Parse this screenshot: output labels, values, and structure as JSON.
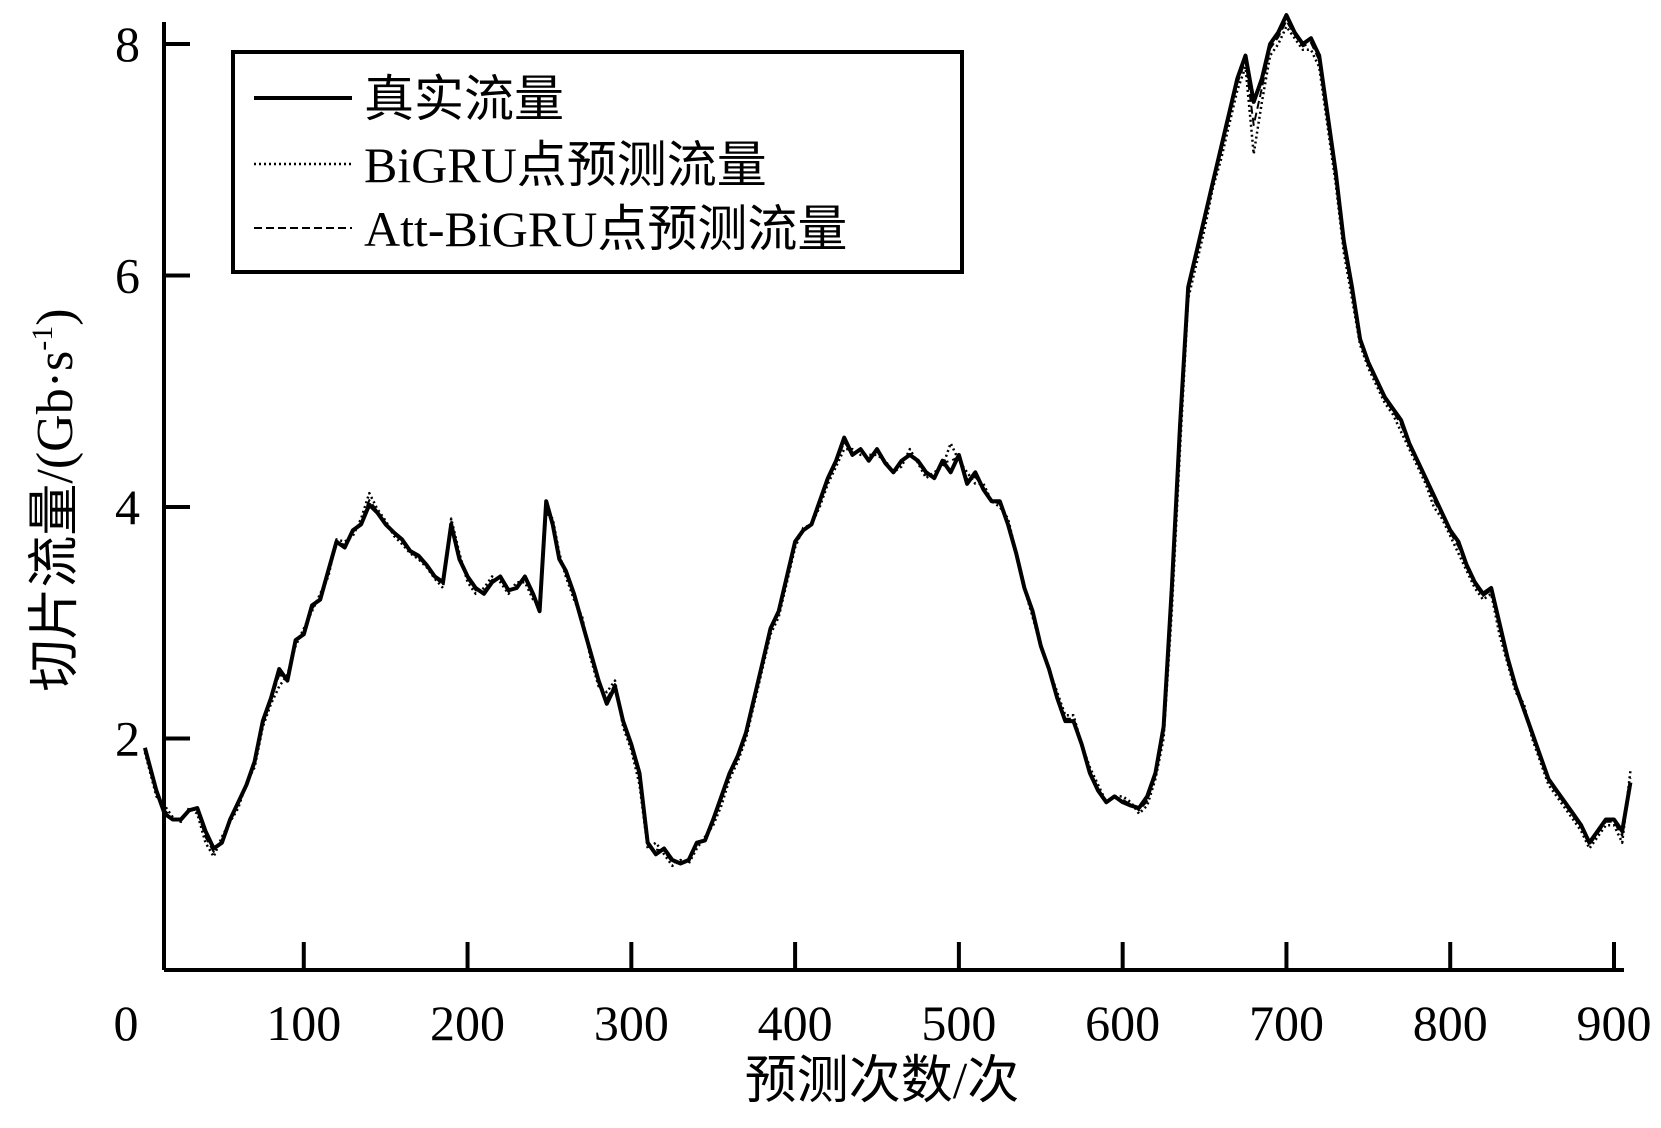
{
  "chart_data": {
    "type": "line",
    "title": "",
    "xlabel": "预测次数/次",
    "ylabel": "切片流量/(Gb·s",
    "ylabel_sup": "-1",
    "ylabel_close": ")",
    "xlim": [
      0,
      910
    ],
    "ylim": [
      0,
      8
    ],
    "x_ticks": [
      0,
      100,
      200,
      300,
      400,
      500,
      600,
      700,
      800,
      900
    ],
    "y_ticks": [
      2,
      4,
      6,
      8
    ],
    "grid": false,
    "legend_position": "top-left",
    "x": [
      3,
      10,
      15,
      20,
      25,
      30,
      35,
      40,
      45,
      50,
      55,
      60,
      65,
      70,
      75,
      80,
      85,
      90,
      95,
      100,
      105,
      110,
      115,
      120,
      125,
      130,
      135,
      140,
      145,
      150,
      155,
      160,
      165,
      170,
      175,
      180,
      185,
      190,
      195,
      200,
      205,
      210,
      215,
      220,
      225,
      230,
      235,
      240,
      244,
      248,
      252,
      256,
      260,
      265,
      270,
      275,
      280,
      285,
      290,
      295,
      300,
      305,
      310,
      315,
      320,
      325,
      330,
      335,
      340,
      345,
      350,
      355,
      360,
      365,
      370,
      375,
      380,
      385,
      390,
      395,
      400,
      405,
      410,
      415,
      420,
      425,
      430,
      435,
      440,
      445,
      450,
      455,
      460,
      465,
      470,
      475,
      480,
      485,
      490,
      495,
      500,
      505,
      510,
      515,
      520,
      525,
      530,
      535,
      540,
      545,
      550,
      555,
      560,
      565,
      570,
      575,
      580,
      585,
      590,
      595,
      600,
      605,
      610,
      615,
      620,
      625,
      630,
      635,
      640,
      645,
      650,
      655,
      660,
      665,
      670,
      675,
      680,
      685,
      690,
      695,
      700,
      705,
      710,
      715,
      720,
      725,
      730,
      735,
      740,
      745,
      750,
      755,
      760,
      765,
      770,
      775,
      780,
      785,
      790,
      795,
      800,
      805,
      810,
      815,
      820,
      825,
      830,
      835,
      840,
      845,
      850,
      855,
      860,
      865,
      870,
      875,
      880,
      885,
      890,
      895,
      900,
      905,
      910
    ],
    "series": [
      {
        "name": "真实流量",
        "style": "solid",
        "values": [
          1.92,
          1.55,
          1.35,
          1.3,
          1.3,
          1.38,
          1.4,
          1.2,
          1.05,
          1.1,
          1.3,
          1.45,
          1.6,
          1.8,
          2.15,
          2.35,
          2.6,
          2.5,
          2.85,
          2.9,
          3.15,
          3.2,
          3.45,
          3.7,
          3.65,
          3.8,
          3.85,
          4.02,
          3.95,
          3.85,
          3.78,
          3.72,
          3.62,
          3.58,
          3.5,
          3.4,
          3.35,
          3.85,
          3.55,
          3.4,
          3.3,
          3.25,
          3.35,
          3.4,
          3.28,
          3.3,
          3.4,
          3.25,
          3.1,
          4.05,
          3.85,
          3.55,
          3.45,
          3.25,
          3.0,
          2.75,
          2.5,
          2.3,
          2.45,
          2.15,
          1.95,
          1.7,
          1.1,
          1.0,
          1.05,
          0.95,
          0.92,
          0.95,
          1.1,
          1.12,
          1.3,
          1.5,
          1.7,
          1.85,
          2.05,
          2.35,
          2.65,
          2.95,
          3.1,
          3.4,
          3.7,
          3.8,
          3.85,
          4.05,
          4.25,
          4.4,
          4.6,
          4.45,
          4.5,
          4.4,
          4.5,
          4.38,
          4.3,
          4.4,
          4.45,
          4.4,
          4.3,
          4.25,
          4.4,
          4.3,
          4.45,
          4.2,
          4.3,
          4.15,
          4.05,
          4.05,
          3.85,
          3.6,
          3.3,
          3.1,
          2.8,
          2.6,
          2.35,
          2.15,
          2.15,
          1.95,
          1.7,
          1.55,
          1.45,
          1.5,
          1.45,
          1.42,
          1.4,
          1.5,
          1.7,
          2.1,
          3.3,
          4.7,
          5.9,
          6.2,
          6.5,
          6.8,
          7.1,
          7.4,
          7.7,
          7.9,
          7.5,
          7.7,
          8.0,
          8.1,
          8.25,
          8.1,
          8.0,
          8.05,
          7.9,
          7.4,
          6.9,
          6.3,
          5.9,
          5.45,
          5.25,
          5.1,
          4.95,
          4.85,
          4.75,
          4.55,
          4.4,
          4.25,
          4.1,
          3.95,
          3.8,
          3.7,
          3.5,
          3.35,
          3.25,
          3.3,
          3.0,
          2.7,
          2.45,
          2.25,
          2.05,
          1.85,
          1.65,
          1.55,
          1.45,
          1.35,
          1.25,
          1.1,
          1.2,
          1.3,
          1.3,
          1.2,
          1.62
        ]
      },
      {
        "name": "BiGRU点预测流量",
        "style": "dotted",
        "values": [
          1.88,
          1.5,
          1.42,
          1.32,
          1.28,
          1.4,
          1.35,
          1.1,
          0.98,
          1.15,
          1.28,
          1.4,
          1.62,
          1.75,
          2.1,
          2.3,
          2.45,
          2.55,
          2.8,
          2.95,
          3.1,
          3.25,
          3.4,
          3.72,
          3.7,
          3.75,
          3.9,
          4.12,
          3.98,
          3.88,
          3.75,
          3.68,
          3.6,
          3.55,
          3.48,
          3.38,
          3.3,
          3.9,
          3.6,
          3.35,
          3.25,
          3.3,
          3.4,
          3.35,
          3.25,
          3.35,
          3.35,
          3.2,
          3.15,
          3.95,
          3.9,
          3.6,
          3.4,
          3.2,
          3.05,
          2.7,
          2.45,
          2.4,
          2.5,
          2.1,
          1.9,
          1.6,
          1.05,
          1.1,
          1.0,
          0.9,
          0.95,
          0.92,
          1.05,
          1.15,
          1.25,
          1.42,
          1.65,
          1.8,
          2.0,
          2.3,
          2.6,
          2.9,
          3.05,
          3.35,
          3.65,
          3.82,
          3.85,
          4.0,
          4.2,
          4.35,
          4.5,
          4.5,
          4.45,
          4.45,
          4.45,
          4.4,
          4.3,
          4.35,
          4.5,
          4.38,
          4.25,
          4.3,
          4.35,
          4.55,
          4.4,
          4.3,
          4.2,
          4.2,
          4.05,
          4.0,
          3.9,
          3.6,
          3.3,
          3.05,
          2.8,
          2.6,
          2.4,
          2.2,
          2.2,
          1.95,
          1.75,
          1.6,
          1.45,
          1.5,
          1.5,
          1.45,
          1.35,
          1.42,
          1.65,
          2.0,
          3.1,
          4.5,
          5.8,
          6.1,
          6.4,
          6.75,
          7.0,
          7.3,
          7.6,
          7.8,
          7.05,
          7.5,
          7.9,
          8.0,
          8.15,
          8.05,
          7.95,
          7.95,
          7.8,
          7.3,
          6.8,
          6.2,
          5.8,
          5.4,
          5.2,
          5.05,
          4.9,
          4.8,
          4.65,
          4.5,
          4.35,
          4.2,
          4.0,
          3.9,
          3.75,
          3.6,
          3.45,
          3.3,
          3.2,
          3.25,
          2.9,
          2.65,
          2.4,
          2.3,
          2.0,
          1.8,
          1.6,
          1.5,
          1.4,
          1.3,
          1.2,
          1.05,
          1.15,
          1.25,
          1.25,
          1.1,
          1.72
        ]
      },
      {
        "name": "Att-BiGRU点预测流量",
        "style": "dashed",
        "values": [
          1.9,
          1.52,
          1.38,
          1.31,
          1.29,
          1.39,
          1.38,
          1.15,
          1.02,
          1.12,
          1.29,
          1.43,
          1.61,
          1.78,
          2.12,
          2.33,
          2.55,
          2.52,
          2.83,
          2.92,
          3.12,
          3.22,
          3.43,
          3.71,
          3.67,
          3.78,
          3.87,
          4.06,
          3.96,
          3.86,
          3.77,
          3.7,
          3.61,
          3.56,
          3.49,
          3.39,
          3.33,
          3.87,
          3.57,
          3.38,
          3.28,
          3.27,
          3.37,
          3.38,
          3.27,
          3.32,
          3.38,
          3.23,
          3.12,
          4.0,
          3.87,
          3.57,
          3.43,
          3.23,
          3.02,
          2.73,
          2.48,
          2.34,
          2.47,
          2.13,
          1.93,
          1.66,
          1.08,
          1.04,
          1.03,
          0.93,
          0.93,
          0.94,
          1.08,
          1.13,
          1.28,
          1.47,
          1.68,
          1.83,
          2.03,
          2.33,
          2.63,
          2.93,
          3.08,
          3.38,
          3.68,
          3.81,
          3.85,
          4.03,
          4.23,
          4.38,
          4.56,
          4.47,
          4.48,
          4.42,
          4.48,
          4.39,
          4.3,
          4.38,
          4.47,
          4.39,
          4.28,
          4.27,
          4.38,
          4.4,
          4.43,
          4.24,
          4.26,
          4.17,
          4.05,
          4.03,
          3.87,
          3.6,
          3.3,
          3.08,
          2.8,
          2.6,
          2.37,
          2.17,
          2.17,
          1.95,
          1.72,
          1.57,
          1.45,
          1.5,
          1.47,
          1.43,
          1.38,
          1.46,
          1.68,
          2.06,
          3.22,
          4.62,
          5.86,
          6.16,
          6.46,
          6.78,
          7.06,
          7.36,
          7.66,
          7.86,
          7.3,
          7.62,
          7.96,
          8.06,
          8.2,
          8.08,
          7.98,
          8.01,
          7.86,
          7.36,
          6.86,
          6.26,
          5.86,
          5.43,
          5.23,
          5.08,
          4.93,
          4.83,
          4.71,
          4.53,
          4.38,
          4.23,
          4.06,
          3.93,
          3.78,
          3.66,
          3.48,
          3.33,
          3.23,
          3.28,
          2.96,
          2.68,
          2.43,
          2.27,
          2.03,
          1.83,
          1.63,
          1.53,
          1.43,
          1.33,
          1.23,
          1.08,
          1.18,
          1.28,
          1.28,
          1.16,
          1.66
        ]
      }
    ]
  }
}
